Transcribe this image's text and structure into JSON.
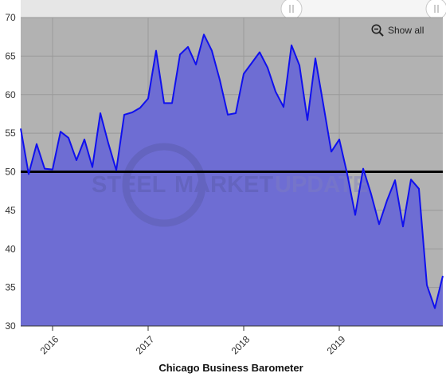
{
  "chart_data": {
    "type": "area",
    "title": "Chicago Business Barometer",
    "xlabel": "",
    "ylabel": "",
    "ylim": [
      30,
      70
    ],
    "yticks": [
      30,
      35,
      40,
      45,
      50,
      55,
      60,
      65,
      70
    ],
    "xticks": [
      "2016",
      "2017",
      "2018",
      "2019"
    ],
    "reference_line": 50,
    "grid": true,
    "x_start": "2015-09",
    "x_end": "2020-02",
    "series": [
      {
        "values": [
          55.6,
          49.7,
          53.6,
          50.4,
          50.3,
          55.2,
          54.4,
          51.5,
          54.2,
          50.6,
          57.6,
          53.7,
          50.2,
          57.4,
          57.7,
          58.3,
          59.5,
          65.7,
          58.9,
          58.9,
          65.2,
          66.2,
          63.9,
          67.8,
          65.7,
          61.9,
          57.4,
          57.6,
          62.7,
          64.1,
          65.5,
          63.5,
          60.4,
          58.4,
          66.4,
          63.8,
          56.7,
          64.7,
          58.7,
          52.6,
          54.2,
          49.7,
          44.4,
          50.4,
          47.1,
          43.2,
          46.3,
          48.9,
          42.9,
          49.0,
          47.8,
          35.3,
          32.3,
          36.5
        ]
      }
    ],
    "colors": {
      "area_fill": "#6e6dd3",
      "line": "#1010ee",
      "plot_background": "#b2b2b2",
      "reference_line": "#000000"
    }
  },
  "watermark": {
    "word1": "STEEL",
    "word2": "MARKET",
    "word3": "UPDATE"
  },
  "controls": {
    "show_all_label": "Show all",
    "show_all_icon": "zoom-out-icon",
    "navigator_handle_icon": "grip-icon"
  }
}
